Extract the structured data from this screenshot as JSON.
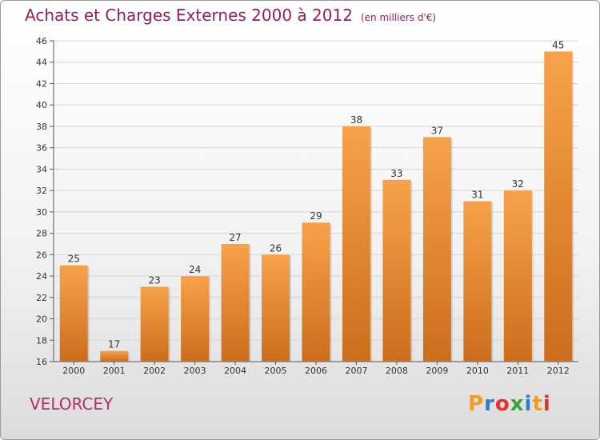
{
  "header": {
    "title": "Achats et Charges Externes 2000 à 2012",
    "unit": "(en milliers d'€)"
  },
  "footer": {
    "town": "VELORCEY",
    "brand": "Proxiti",
    "brand_letter_colors": [
      "#f39c1e",
      "#2b7fc8",
      "#e8302a",
      "#3aa33a",
      "#2b7fc8",
      "#f39c1e",
      "#e8302a"
    ]
  },
  "colors": {
    "bar_light": "#f7a24a",
    "bar_dark": "#cc6d1d",
    "title": "#9b1c5c",
    "grid": "#d4d4d4"
  },
  "chart_data": {
    "type": "bar",
    "title": "Achats et Charges Externes 2000 à 2012",
    "subtitle": "(en milliers d'€)",
    "categories": [
      "2000",
      "2001",
      "2002",
      "2003",
      "2004",
      "2005",
      "2006",
      "2007",
      "2008",
      "2009",
      "2010",
      "2011",
      "2012"
    ],
    "values": [
      25,
      17,
      23,
      24,
      27,
      26,
      29,
      38,
      33,
      37,
      31,
      32,
      45
    ],
    "ylim": [
      16,
      46
    ],
    "yticks": [
      16,
      18,
      20,
      22,
      24,
      26,
      28,
      30,
      32,
      34,
      36,
      38,
      40,
      42,
      44,
      46
    ],
    "grid": true,
    "data_labels": true
  }
}
